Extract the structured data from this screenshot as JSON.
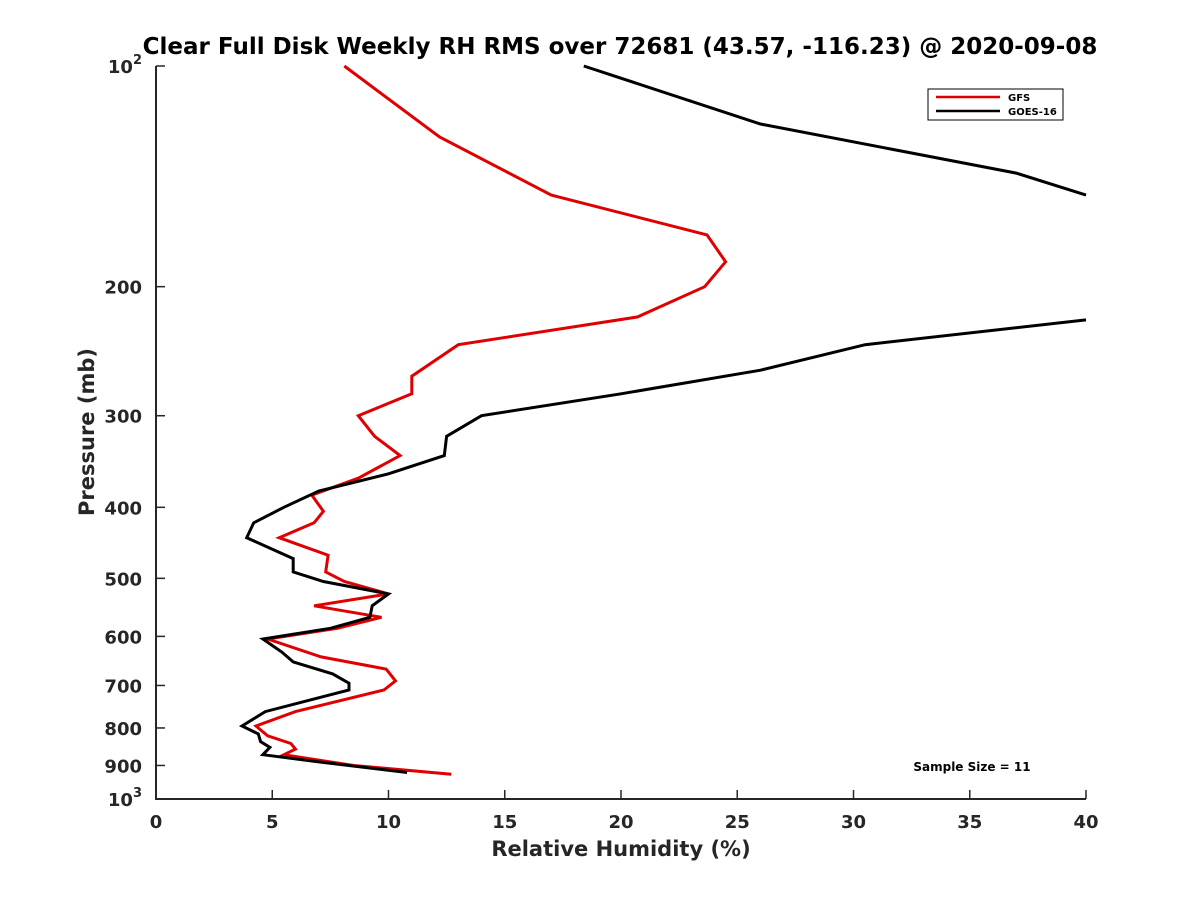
{
  "chart_data": {
    "type": "line",
    "title": "Clear Full Disk Weekly RH RMS over 72681 (43.57, -116.23) @ 2020-09-08",
    "xlabel": "Relative Humidity (%)",
    "ylabel": "Pressure (mb)",
    "xlim": [
      0,
      40
    ],
    "ylim": [
      100,
      1000
    ],
    "y_scale": "log",
    "y_reversed": true,
    "grid": false,
    "legend_position": "top-right",
    "x_ticks": [
      "0",
      "5",
      "10",
      "15",
      "20",
      "25",
      "30",
      "35",
      "40"
    ],
    "y_ticks": [
      {
        "value": 100,
        "base": "10",
        "exp": "2"
      },
      {
        "value": 200,
        "label": "200"
      },
      {
        "value": 300,
        "label": "300"
      },
      {
        "value": 400,
        "label": "400"
      },
      {
        "value": 500,
        "label": "500"
      },
      {
        "value": 600,
        "label": "600"
      },
      {
        "value": 700,
        "label": "700"
      },
      {
        "value": 800,
        "label": "800"
      },
      {
        "value": 900,
        "label": "900"
      },
      {
        "value": 1000,
        "base": "10",
        "exp": "3"
      }
    ],
    "annotation": "Sample Size = 11",
    "series": [
      {
        "name": "GFS",
        "color": "#e00000",
        "points": [
          [
            8.1,
            100
          ],
          [
            12.2,
            125
          ],
          [
            17.0,
            150
          ],
          [
            23.7,
            170
          ],
          [
            24.5,
            185
          ],
          [
            23.6,
            200
          ],
          [
            20.7,
            220
          ],
          [
            13.0,
            240
          ],
          [
            11.0,
            265
          ],
          [
            11.0,
            280
          ],
          [
            8.7,
            300
          ],
          [
            9.4,
            320
          ],
          [
            10.5,
            340
          ],
          [
            8.7,
            365
          ],
          [
            6.7,
            385
          ],
          [
            7.2,
            405
          ],
          [
            6.8,
            420
          ],
          [
            5.3,
            440
          ],
          [
            7.4,
            465
          ],
          [
            7.3,
            490
          ],
          [
            8.1,
            505
          ],
          [
            10.0,
            525
          ],
          [
            6.8,
            545
          ],
          [
            9.7,
            565
          ],
          [
            7.8,
            585
          ],
          [
            4.8,
            605
          ],
          [
            7.1,
            640
          ],
          [
            9.9,
            665
          ],
          [
            10.3,
            690
          ],
          [
            9.8,
            710
          ],
          [
            6.0,
            760
          ],
          [
            4.3,
            795
          ],
          [
            4.8,
            820
          ],
          [
            5.8,
            840
          ],
          [
            6.0,
            855
          ],
          [
            5.5,
            870
          ],
          [
            8.5,
            900
          ],
          [
            12.7,
            925
          ]
        ]
      },
      {
        "name": "GOES-16",
        "color": "#000000",
        "points": [
          [
            18.4,
            100
          ],
          [
            26.0,
            120
          ],
          [
            37.0,
            140
          ],
          [
            40.0,
            150
          ]
        ],
        "points_2": [
          [
            40.0,
            222
          ],
          [
            30.5,
            240
          ],
          [
            26.0,
            260
          ],
          [
            20.0,
            280
          ],
          [
            14.0,
            300
          ],
          [
            12.5,
            320
          ],
          [
            12.4,
            340
          ],
          [
            10.0,
            360
          ],
          [
            7.0,
            380
          ],
          [
            5.5,
            400
          ],
          [
            4.2,
            420
          ],
          [
            3.9,
            440
          ],
          [
            5.9,
            470
          ],
          [
            5.9,
            490
          ],
          [
            7.2,
            505
          ],
          [
            10.0,
            525
          ],
          [
            9.3,
            545
          ],
          [
            9.2,
            565
          ],
          [
            7.5,
            585
          ],
          [
            4.6,
            605
          ],
          [
            5.4,
            630
          ],
          [
            5.9,
            650
          ],
          [
            7.6,
            675
          ],
          [
            8.3,
            695
          ],
          [
            8.3,
            710
          ],
          [
            4.7,
            760
          ],
          [
            3.7,
            795
          ],
          [
            4.4,
            815
          ],
          [
            4.5,
            835
          ],
          [
            4.9,
            850
          ],
          [
            4.6,
            870
          ],
          [
            7.0,
            890
          ],
          [
            10.8,
            920
          ]
        ]
      }
    ]
  }
}
